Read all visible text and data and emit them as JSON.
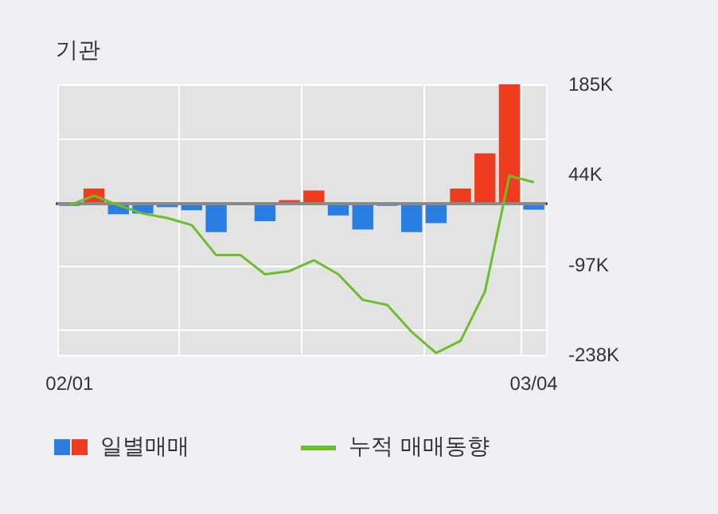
{
  "chart_data": {
    "type": "bar",
    "title": "기관",
    "categories": [
      "02/01",
      null,
      null,
      null,
      null,
      null,
      null,
      null,
      null,
      null,
      null,
      null,
      null,
      null,
      null,
      null,
      null,
      null,
      null,
      "03/04"
    ],
    "series": [
      {
        "name": "일별매매",
        "colors": [
          "#2a7de1",
          "#f03c1e",
          "#2a7de1",
          "#2a7de1",
          "#2a7de1",
          "#2a7de1",
          "#2a7de1",
          "#2a7de1",
          "#2a7de1",
          "#f03c1e",
          "#f03c1e",
          "#2a7de1",
          "#2a7de1",
          "#2a7de1",
          "#2a7de1",
          "#2a7de1",
          "#f03c1e",
          "#f03c1e",
          "#f03c1e",
          "#2a7de1"
        ],
        "values": [
          -5,
          22,
          -18,
          -17,
          -7,
          -12,
          -46,
          0,
          -29,
          4,
          19,
          -20,
          -42,
          -5,
          -46,
          -32,
          22,
          77,
          185,
          -11
        ]
      },
      {
        "name": "누적 매매동향",
        "type": "line",
        "color": "#6abf2a",
        "values": [
          -4,
          11,
          -4,
          -17,
          -24,
          -35,
          -82,
          -82,
          -112,
          -107,
          -90,
          -112,
          -152,
          -160,
          -202,
          -235,
          -216,
          -139,
          42,
          32
        ]
      }
    ],
    "ylim": [
      -238,
      185
    ],
    "yticks": [
      {
        "value": 185,
        "label": "185K"
      },
      {
        "value": 44,
        "label": "44K"
      },
      {
        "value": -97,
        "label": "-97K"
      },
      {
        "value": -238,
        "label": "-238K"
      }
    ],
    "ref_lines": [
      {
        "axis": "y",
        "value": 0,
        "color": "#8a8a8a"
      }
    ],
    "grid": true,
    "legend": "bottom left",
    "marker": "none",
    "line_style": "solid"
  }
}
